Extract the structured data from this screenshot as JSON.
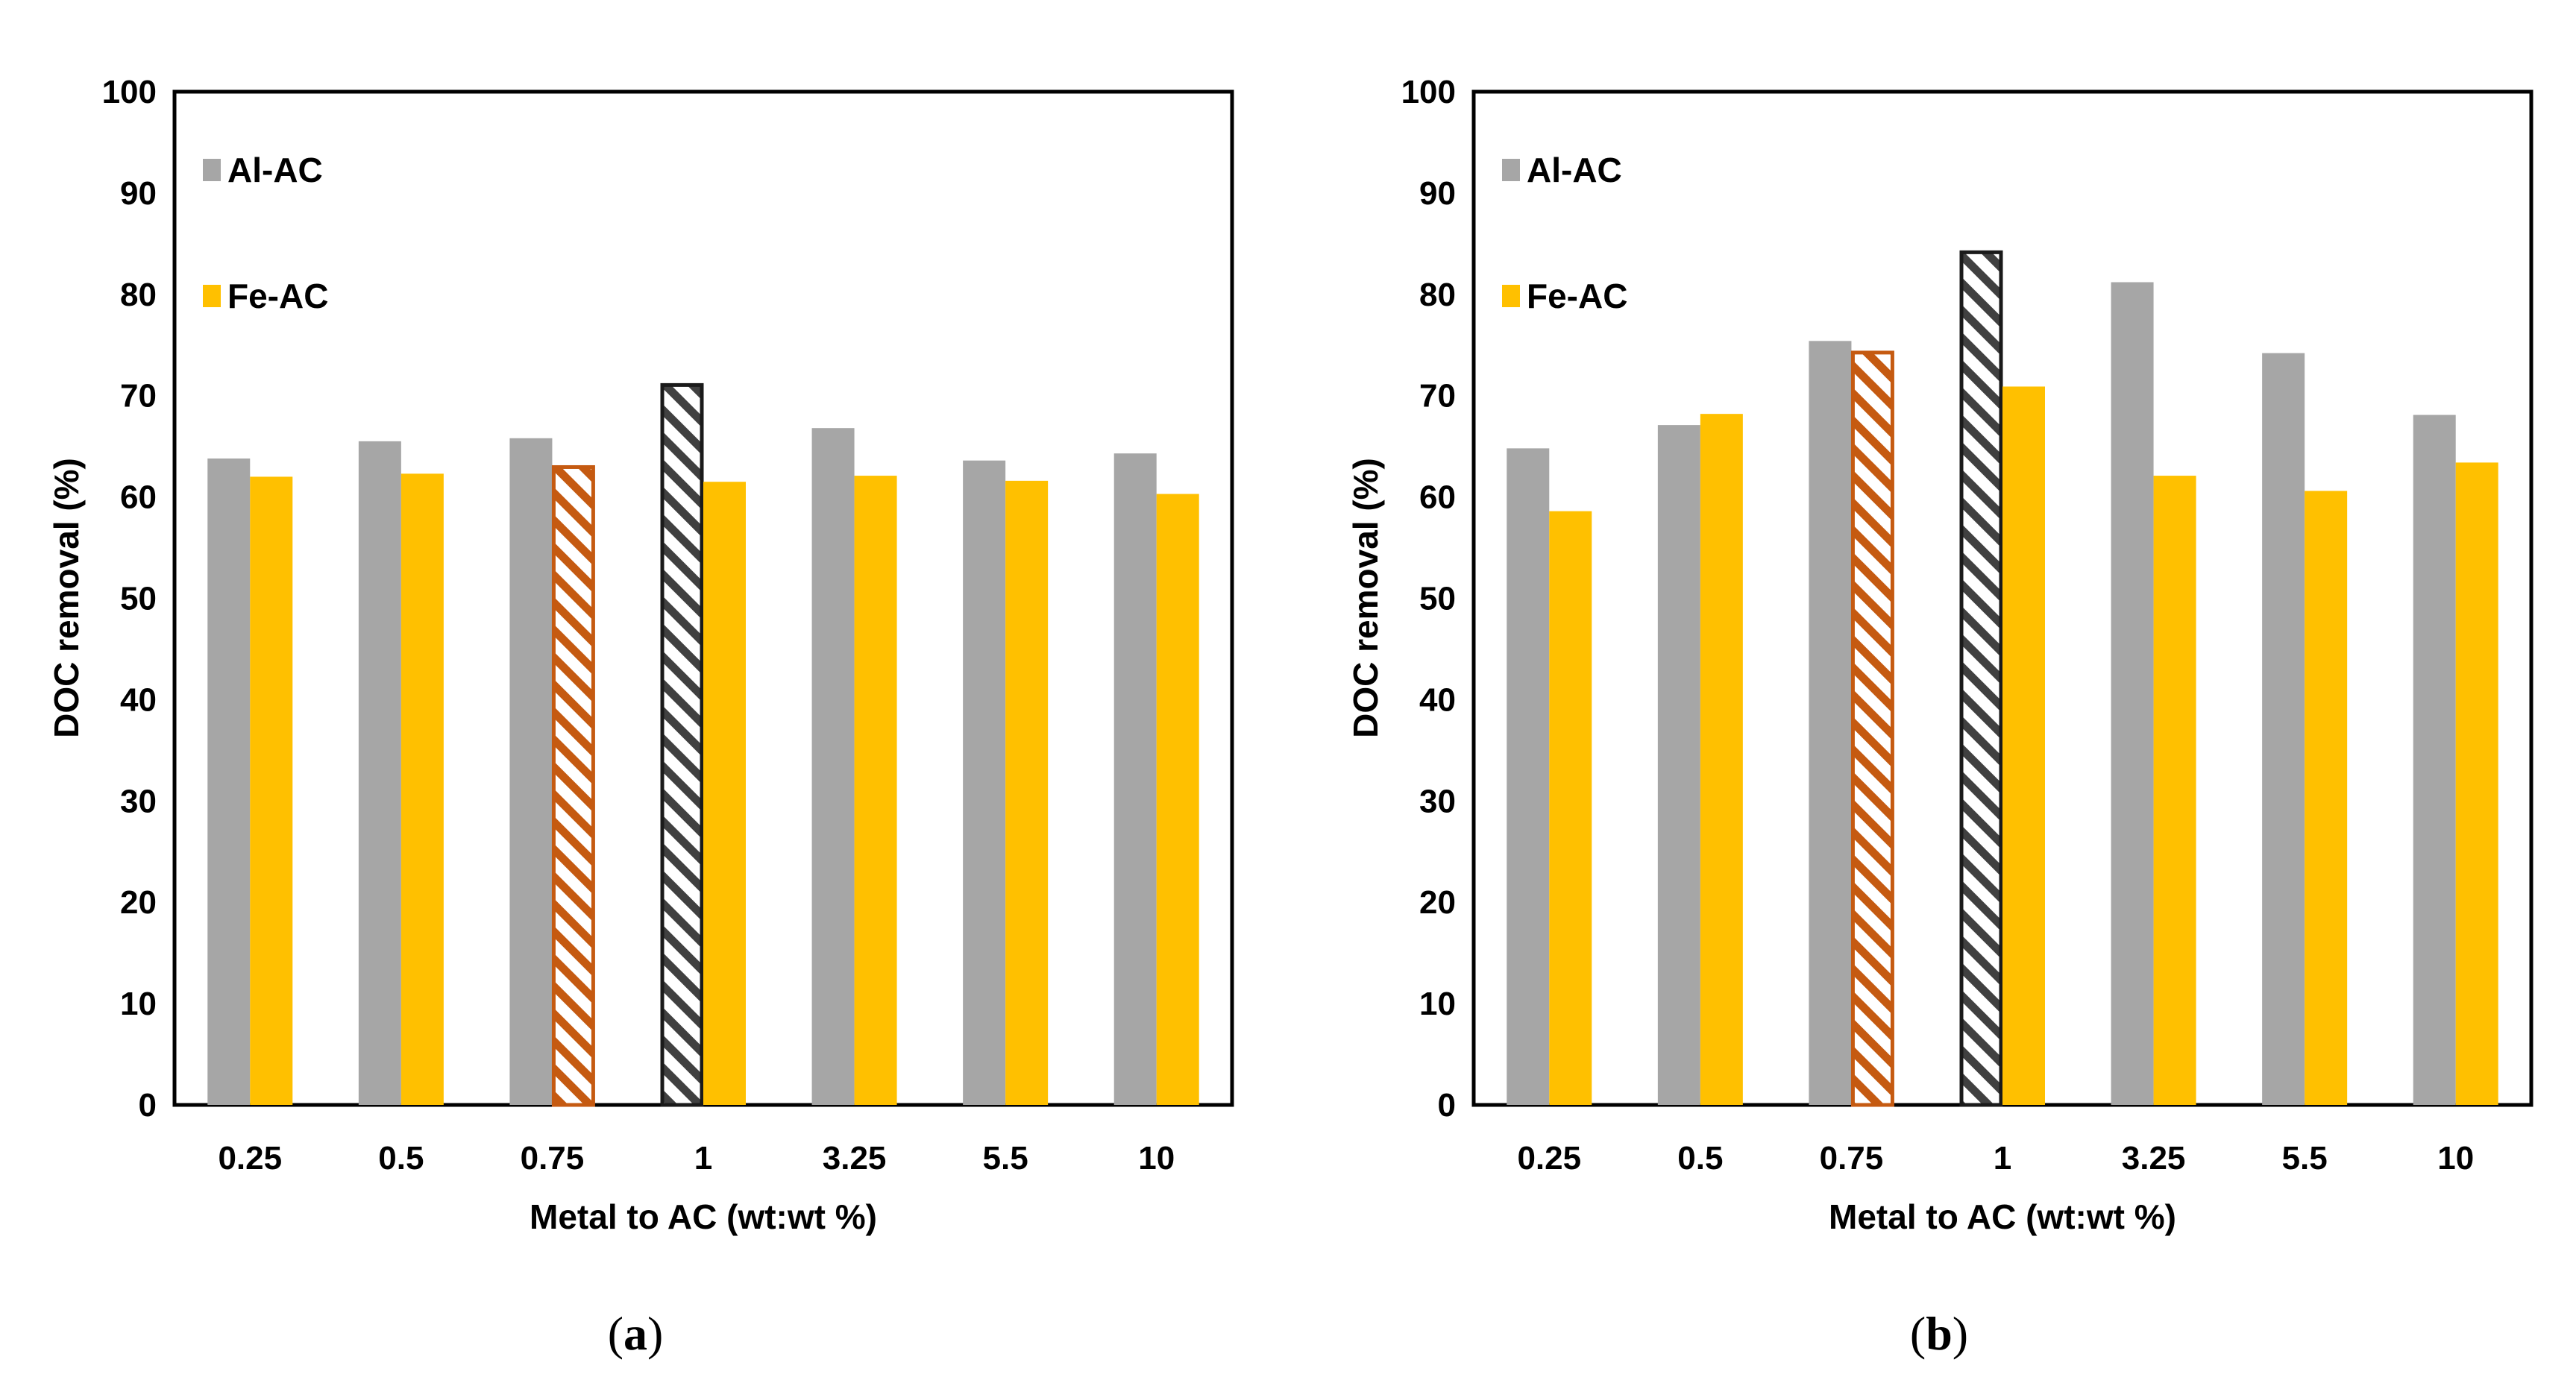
{
  "colors": {
    "al": "#a6a6a6",
    "fe": "#ffc000",
    "hatch_orange": "#c55a11",
    "hatch_black": "#1a1a1a"
  },
  "chart_data": [
    {
      "type": "bar",
      "panel": "a",
      "caption_open": "(",
      "caption_letter": "a",
      "caption_close": ")",
      "categories": [
        "0.25",
        "0.5",
        "0.75",
        "1",
        "3.25",
        "5.5",
        "10"
      ],
      "series": [
        {
          "name": "Al-AC",
          "values": [
            63.8,
            65.5,
            65.8,
            71.2,
            66.8,
            63.6,
            64.3
          ],
          "highlight_index": 3,
          "highlight_style": "hatch-black"
        },
        {
          "name": "Fe-AC",
          "values": [
            62.0,
            62.3,
            63.1,
            61.5,
            62.1,
            61.6,
            60.3
          ],
          "highlight_index": 2,
          "highlight_style": "hatch-orange"
        }
      ],
      "xlabel": "Metal to AC (wt:wt %)",
      "ylabel": "DOC removal (%)",
      "ylim": [
        0,
        100
      ],
      "yticks": [
        "0",
        "10",
        "20",
        "30",
        "40",
        "50",
        "60",
        "70",
        "80",
        "90",
        "100"
      ],
      "grid": false,
      "legend": "top-left"
    },
    {
      "type": "bar",
      "panel": "b",
      "caption_open": "(",
      "caption_letter": "b",
      "caption_close": ")",
      "categories": [
        "0.25",
        "0.5",
        "0.75",
        "1",
        "3.25",
        "5.5",
        "10"
      ],
      "series": [
        {
          "name": "Al-AC",
          "values": [
            64.8,
            67.1,
            75.4,
            84.3,
            81.2,
            74.2,
            68.1
          ],
          "highlight_index": 3,
          "highlight_style": "hatch-black"
        },
        {
          "name": "Fe-AC",
          "values": [
            58.6,
            68.2,
            74.4,
            70.9,
            62.1,
            60.6,
            63.4
          ],
          "highlight_index": 2,
          "highlight_style": "hatch-orange"
        }
      ],
      "xlabel": "Metal to AC (wt:wt %)",
      "ylabel": "DOC removal (%)",
      "ylim": [
        0,
        100
      ],
      "yticks": [
        "0",
        "10",
        "20",
        "30",
        "40",
        "50",
        "60",
        "70",
        "80",
        "90",
        "100"
      ],
      "grid": false,
      "legend": "top-left"
    }
  ]
}
